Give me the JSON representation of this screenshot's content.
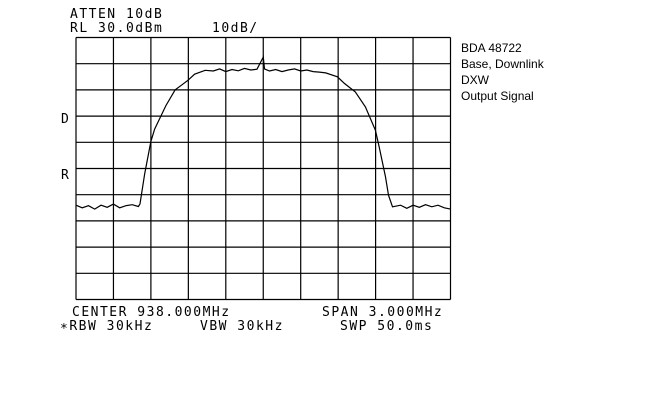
{
  "header": {
    "atten": "ATTEN 10dB",
    "ref_level": "RL 30.0dBm",
    "scale": "10dB/"
  },
  "markers": {
    "d": "D",
    "r": "R"
  },
  "annotation": [
    "BDA 48722",
    "Base, Downlink",
    "DXW",
    "Output Signal"
  ],
  "footer": {
    "center": "CENTER 938.000MHz",
    "span": "SPAN 3.000MHz",
    "rbw": "∗RBW 30kHz",
    "vbw": "VBW 30kHz",
    "swp": "SWP 50.0ms"
  },
  "chart_data": {
    "type": "line",
    "xlabel": "",
    "ylabel": "",
    "x_unit": "MHz",
    "y_unit": "dBm",
    "xlim": [
      936.5,
      939.5
    ],
    "ylim": [
      -70,
      30
    ],
    "x_divisions": 10,
    "y_divisions": 10,
    "grid": true,
    "trace_color": "#000000",
    "series": [
      {
        "x": [
          936.5,
          936.55,
          936.6,
          936.65,
          936.7,
          936.75,
          936.8,
          936.85,
          936.9,
          936.95,
          937.0,
          937.013,
          937.05,
          937.099,
          937.13,
          937.174,
          937.22,
          937.294,
          937.35,
          937.398,
          937.45,
          937.535,
          937.6,
          937.65,
          937.7,
          937.75,
          937.8,
          937.85,
          937.9,
          937.95,
          938.0,
          938.01,
          938.05,
          938.1,
          938.15,
          938.2,
          938.25,
          938.3,
          938.35,
          938.4,
          938.45,
          938.5,
          938.594,
          938.65,
          938.738,
          938.818,
          938.898,
          938.93,
          938.979,
          939.003,
          939.035,
          939.1,
          939.15,
          939.2,
          939.25,
          939.3,
          939.35,
          939.4,
          939.45,
          939.5
        ],
        "y": [
          -34,
          -35,
          -34.2,
          -35.5,
          -34,
          -34.8,
          -33.6,
          -35,
          -34.2,
          -33.8,
          -34.5,
          -33.5,
          -22,
          -9.8,
          -5,
          -0.6,
          4,
          10,
          12,
          13.7,
          16,
          17.5,
          17.2,
          18,
          17,
          17.8,
          17.3,
          18.2,
          17.6,
          17.9,
          22.5,
          18,
          17.2,
          17.8,
          17,
          17.6,
          18,
          17.2,
          17.6,
          17,
          16.8,
          16.5,
          15,
          12.5,
          9.2,
          3.5,
          -5.4,
          -12,
          -23.2,
          -30.2,
          -34.6,
          -34,
          -35.2,
          -34,
          -34.8,
          -33.8,
          -34.6,
          -34,
          -35,
          -35.5
        ]
      }
    ]
  }
}
